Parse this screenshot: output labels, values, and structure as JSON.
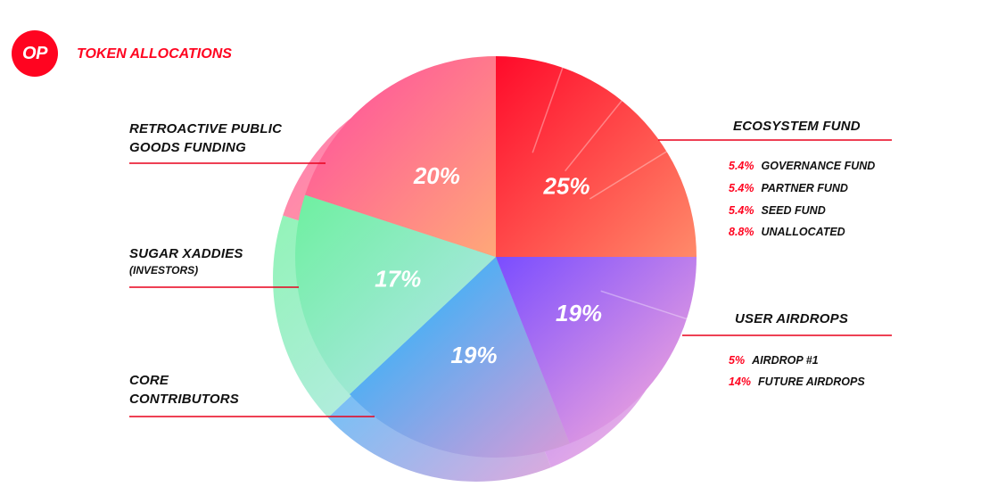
{
  "logo": {
    "text": "OP"
  },
  "title": "TOKEN ALLOCATIONS",
  "colors": {
    "brand": "#ff0420",
    "line": "#e8001c"
  },
  "labels": {
    "retro_line1": "RETROACTIVE PUBLIC",
    "retro_line2": "GOODS FUNDING",
    "investors_line1": "SUGAR XADDIES",
    "investors_sub": "(INVESTORS)",
    "core_line1": "CORE",
    "core_line2": "CONTRIBUTORS",
    "ecosystem": "ECOSYSTEM FUND",
    "airdrops": "USER AIRDROPS"
  },
  "ecosystem_breakdown": [
    {
      "pct": "5.4%",
      "name": "GOVERNANCE FUND"
    },
    {
      "pct": "5.4%",
      "name": "PARTNER FUND"
    },
    {
      "pct": "5.4%",
      "name": "SEED FUND"
    },
    {
      "pct": "8.8%",
      "name": "UNALLOCATED"
    }
  ],
  "airdrop_breakdown": [
    {
      "pct": "5%",
      "name": "AIRDROP #1"
    },
    {
      "pct": "14%",
      "name": "FUTURE AIRDROPS"
    }
  ],
  "chart_data": {
    "type": "pie",
    "title": "TOKEN ALLOCATIONS",
    "slices": [
      {
        "key": "ecosystem",
        "label": "25%",
        "value": 25,
        "colors": [
          "#ff0a2a",
          "#ff8a6a"
        ],
        "sub": [
          5.4,
          5.4,
          5.4,
          8.8
        ]
      },
      {
        "key": "airdrops",
        "label": "19%",
        "value": 19,
        "colors": [
          "#7a4dff",
          "#ffb0d8"
        ],
        "sub": [
          5,
          14
        ]
      },
      {
        "key": "core",
        "label": "19%",
        "value": 19,
        "colors": [
          "#14b8ff",
          "#d89ad8"
        ],
        "sub": []
      },
      {
        "key": "investors",
        "label": "17%",
        "value": 17,
        "colors": [
          "#6ef0a0",
          "#b8e4f0"
        ],
        "sub": []
      },
      {
        "key": "retro",
        "label": "20%",
        "value": 20,
        "colors": [
          "#ff4aa0",
          "#ffa878"
        ],
        "sub": []
      }
    ],
    "legend": "none"
  }
}
